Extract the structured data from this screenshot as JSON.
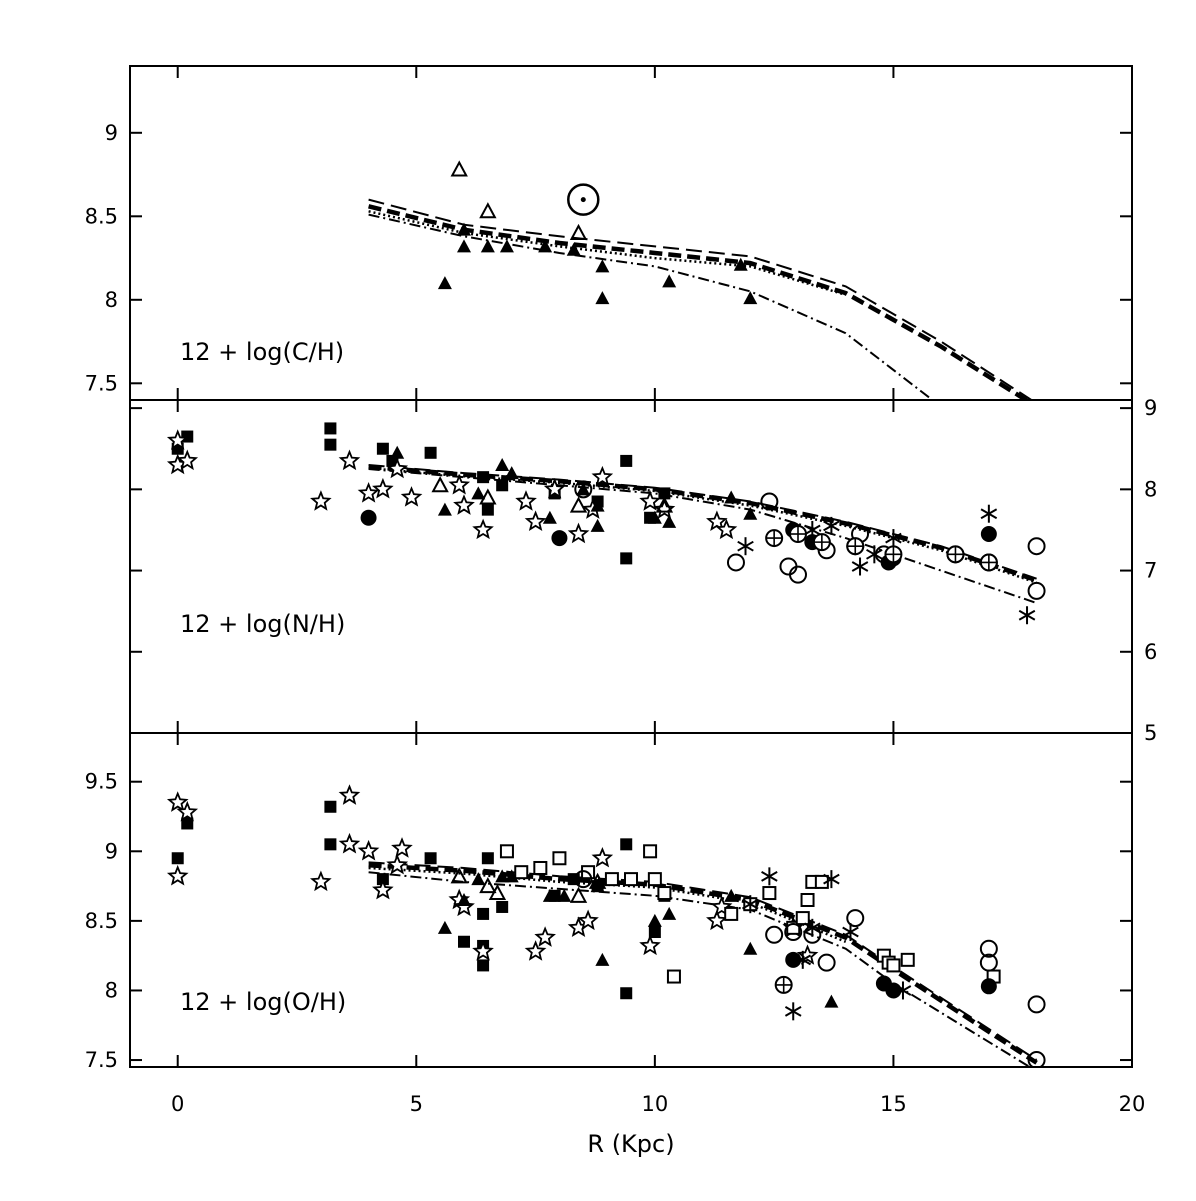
{
  "chart_data": {
    "type": "scatter",
    "x_axis": {
      "label": "R (Kpc)",
      "range": [
        -1,
        20
      ],
      "ticks": [
        0,
        5,
        10,
        15,
        20
      ],
      "tick_labels": [
        "0",
        "5",
        "10",
        "15",
        "20"
      ]
    },
    "panels": [
      {
        "label": "12 + log(C/H)",
        "y_range": [
          7.4,
          9.4
        ],
        "y_ticks": [
          7.5,
          8,
          8.5,
          9
        ],
        "y_tick_labels": [
          "7.5",
          "8",
          "8.5",
          "9"
        ],
        "y_axis_side": "left",
        "models": [
          {
            "style": "long-dash",
            "x": [
              4,
              6,
              8,
              10,
              12,
              14,
              16,
              18
            ],
            "y": [
              8.6,
              8.45,
              8.38,
              8.32,
              8.26,
              8.08,
              7.75,
              7.38
            ]
          },
          {
            "style": "bold-dash",
            "x": [
              4,
              6,
              8,
              10,
              12,
              14,
              16,
              18
            ],
            "y": [
              8.56,
              8.42,
              8.34,
              8.28,
              8.22,
              8.04,
              7.72,
              7.36
            ]
          },
          {
            "style": "dotted",
            "x": [
              4,
              6,
              8,
              10,
              12,
              14
            ],
            "y": [
              8.53,
              8.4,
              8.32,
              8.25,
              8.2,
              8.03
            ]
          },
          {
            "style": "dash-dot",
            "x": [
              4,
              6,
              8,
              10,
              12,
              14,
              16
            ],
            "y": [
              8.51,
              8.38,
              8.28,
              8.2,
              8.05,
              7.8,
              7.36
            ]
          }
        ],
        "points": [
          {
            "marker": "filled-triangle",
            "x": [
              5.6,
              6.0,
              6.0,
              6.5,
              6.9,
              7.7,
              8.3,
              8.9,
              8.9,
              10.3,
              11.8,
              12.0
            ],
            "y": [
              8.1,
              8.42,
              8.32,
              8.32,
              8.32,
              8.32,
              8.3,
              8.2,
              8.01,
              8.11,
              8.21,
              8.01
            ]
          },
          {
            "marker": "open-triangle",
            "x": [
              5.9,
              6.5,
              8.4
            ],
            "y": [
              8.78,
              8.53,
              8.4
            ]
          },
          {
            "marker": "sun",
            "x": [
              8.5
            ],
            "y": [
              8.6
            ]
          }
        ]
      },
      {
        "label": "12 + log(N/H)",
        "y_range": [
          5.0,
          9.1
        ],
        "y_ticks": [
          5,
          6,
          7,
          8,
          9
        ],
        "y_tick_labels": [
          "5",
          "6",
          "7",
          "8",
          "9"
        ],
        "y_axis_side": "right",
        "models": [
          {
            "style": "long-dash",
            "x": [
              4,
              6,
              8,
              10,
              12,
              14,
              16,
              18
            ],
            "y": [
              8.3,
              8.2,
              8.12,
              8.02,
              7.85,
              7.6,
              7.3,
              6.9
            ]
          },
          {
            "style": "bold-dash",
            "x": [
              4,
              6,
              8,
              10,
              12,
              14,
              16,
              18
            ],
            "y": [
              8.28,
              8.18,
              8.1,
              8.0,
              7.83,
              7.58,
              7.28,
              6.88
            ]
          },
          {
            "style": "dotted",
            "x": [
              4,
              6,
              8,
              10,
              12,
              14,
              16,
              18
            ],
            "y": [
              8.26,
              8.16,
              8.08,
              7.98,
              7.8,
              7.55,
              7.25,
              6.85
            ]
          },
          {
            "style": "dash-dot",
            "x": [
              4,
              6,
              8,
              10,
              12,
              14,
              16,
              18
            ],
            "y": [
              8.25,
              8.15,
              8.05,
              7.95,
              7.75,
              7.4,
              7.0,
              6.6
            ]
          }
        ],
        "points": [
          {
            "marker": "filled-square",
            "x": [
              0.0,
              0.2,
              3.2,
              3.2,
              4.3,
              4.5,
              5.3,
              6.4,
              6.5,
              6.8,
              7.9,
              8.8,
              9.4,
              9.4,
              9.9,
              10.2
            ],
            "y": [
              8.5,
              8.65,
              8.75,
              8.55,
              8.5,
              8.35,
              8.45,
              8.15,
              7.75,
              8.05,
              7.95,
              7.85,
              8.35,
              7.15,
              7.65,
              7.95
            ]
          },
          {
            "marker": "open-star",
            "x": [
              0.0,
              0.0,
              0.2,
              3.0,
              3.6,
              4.0,
              4.3,
              4.6,
              4.9,
              5.9,
              6.0,
              6.4,
              7.3,
              7.5,
              7.9,
              8.4,
              8.7,
              8.9,
              9.9,
              10.2,
              11.3,
              11.5
            ],
            "y": [
              8.6,
              8.3,
              8.35,
              7.85,
              8.35,
              7.95,
              8.0,
              8.25,
              7.9,
              8.05,
              7.8,
              7.5,
              7.85,
              7.6,
              8.0,
              7.45,
              7.75,
              8.15,
              7.85,
              7.75,
              7.6,
              7.5
            ]
          },
          {
            "marker": "filled-triangle",
            "x": [
              4.6,
              5.6,
              6.3,
              6.8,
              7.0,
              7.8,
              8.5,
              8.8,
              8.8,
              10.0,
              10.3,
              11.6,
              12.0
            ],
            "y": [
              8.45,
              7.75,
              7.95,
              8.3,
              8.2,
              7.65,
              8.0,
              7.8,
              7.55,
              7.65,
              7.6,
              7.9,
              7.7
            ]
          },
          {
            "marker": "open-triangle",
            "x": [
              5.5,
              6.5,
              8.4,
              10.2
            ],
            "y": [
              8.05,
              7.9,
              7.8,
              7.8
            ]
          },
          {
            "marker": "filled-circle",
            "x": [
              4.0,
              8.0,
              12.9,
              13.3,
              14.9,
              15.0,
              17.0
            ],
            "y": [
              7.65,
              7.4,
              7.5,
              7.35,
              7.1,
              7.15,
              7.45
            ]
          },
          {
            "marker": "open-circle",
            "x": [
              8.5,
              11.7,
              12.4,
              12.8,
              13.0,
              13.6,
              14.2,
              14.3,
              14.8,
              16.3,
              17.0,
              18.0,
              18.0
            ],
            "y": [
              8.0,
              7.1,
              7.85,
              7.05,
              6.95,
              7.25,
              7.3,
              7.45,
              7.2,
              7.2,
              7.1,
              7.3,
              6.75
            ]
          },
          {
            "marker": "asterisk",
            "x": [
              11.9,
              13.3,
              13.7,
              14.3,
              14.6,
              15.0,
              17.0,
              17.8
            ],
            "y": [
              7.3,
              7.5,
              7.55,
              7.05,
              7.2,
              7.4,
              7.7,
              6.45
            ]
          },
          {
            "marker": "circled-cross",
            "x": [
              12.5,
              13.0,
              13.5,
              14.2,
              15.0,
              16.3,
              17.0
            ],
            "y": [
              7.4,
              7.45,
              7.35,
              7.3,
              7.2,
              7.2,
              7.1
            ]
          }
        ]
      },
      {
        "label": "12 + log(O/H)",
        "y_range": [
          7.45,
          9.85
        ],
        "y_ticks": [
          7.5,
          8,
          8.5,
          9,
          9.5
        ],
        "y_tick_labels": [
          "7.5",
          "8",
          "8.5",
          "9",
          "9.5"
        ],
        "y_axis_side": "left",
        "models": [
          {
            "style": "long-dash",
            "x": [
              4,
              6,
              8,
              10,
              12,
              14,
              15,
              18
            ],
            "y": [
              8.92,
              8.88,
              8.82,
              8.78,
              8.67,
              8.4,
              8.17,
              7.5
            ]
          },
          {
            "style": "bold-dash",
            "x": [
              4,
              6,
              8,
              10,
              12,
              14,
              15,
              18
            ],
            "y": [
              8.9,
              8.86,
              8.8,
              8.76,
              8.65,
              8.38,
              8.15,
              7.48
            ]
          },
          {
            "style": "dotted",
            "x": [
              4,
              6,
              8,
              10,
              12,
              14
            ],
            "y": [
              8.88,
              8.84,
              8.78,
              8.74,
              8.63,
              8.35
            ]
          },
          {
            "style": "dash-dot",
            "x": [
              4,
              6,
              8,
              10,
              12,
              14,
              15,
              18
            ],
            "y": [
              8.85,
              8.78,
              8.73,
              8.68,
              8.58,
              8.3,
              8.05,
              7.42
            ]
          }
        ],
        "points": [
          {
            "marker": "filled-square",
            "x": [
              0.0,
              0.2,
              3.2,
              3.2,
              4.3,
              5.3,
              6.0,
              6.4,
              6.4,
              6.4,
              6.5,
              6.8,
              7.9,
              8.3,
              8.8,
              9.4,
              9.4,
              10.0,
              10.2
            ],
            "y": [
              8.95,
              9.2,
              9.32,
              9.05,
              8.8,
              8.95,
              8.35,
              8.32,
              8.18,
              8.55,
              8.95,
              8.6,
              8.68,
              8.8,
              8.75,
              9.05,
              7.98,
              8.42,
              8.68
            ]
          },
          {
            "marker": "open-star",
            "x": [
              0.0,
              0.0,
              0.2,
              3.0,
              3.6,
              3.6,
              4.0,
              4.3,
              4.6,
              4.7,
              5.9,
              6.0,
              6.4,
              7.5,
              7.7,
              8.4,
              8.6,
              8.9,
              9.9,
              11.3,
              11.4,
              12.9,
              13.2
            ],
            "y": [
              9.35,
              8.82,
              9.28,
              8.78,
              9.4,
              9.05,
              9.0,
              8.72,
              8.9,
              9.02,
              8.65,
              8.6,
              8.28,
              8.28,
              8.38,
              8.45,
              8.5,
              8.95,
              8.32,
              8.5,
              8.6,
              8.45,
              8.25
            ]
          },
          {
            "marker": "filled-triangle",
            "x": [
              5.6,
              6.0,
              6.3,
              6.8,
              7.0,
              7.8,
              8.1,
              8.8,
              8.9,
              10.0,
              10.3,
              11.6,
              12.0,
              13.7
            ],
            "y": [
              8.45,
              8.65,
              8.8,
              8.82,
              8.82,
              8.68,
              8.68,
              8.75,
              8.22,
              8.5,
              8.55,
              8.68,
              8.3,
              7.92
            ]
          },
          {
            "marker": "open-triangle",
            "x": [
              5.9,
              6.5,
              6.7,
              8.4,
              8.8
            ],
            "y": [
              8.82,
              8.75,
              8.7,
              8.68,
              8.78
            ]
          },
          {
            "marker": "open-square",
            "x": [
              6.9,
              7.2,
              7.6,
              8.0,
              8.6,
              9.1,
              9.5,
              9.9,
              10.0,
              10.2,
              10.4,
              11.6,
              12.0,
              12.4,
              12.9,
              13.1,
              13.2,
              13.3,
              13.5,
              14.8,
              14.9,
              15.0,
              15.3,
              17.1
            ],
            "y": [
              9.0,
              8.85,
              8.88,
              8.95,
              8.85,
              8.8,
              8.8,
              9.0,
              8.8,
              8.7,
              8.1,
              8.55,
              8.62,
              8.7,
              8.45,
              8.52,
              8.65,
              8.78,
              8.78,
              8.25,
              8.2,
              8.18,
              8.22,
              8.1
            ]
          },
          {
            "marker": "filled-circle",
            "x": [
              12.9,
              14.8,
              15.0,
              17.0
            ],
            "y": [
              8.22,
              8.05,
              8.0,
              8.03
            ]
          },
          {
            "marker": "open-circle",
            "x": [
              8.5,
              12.5,
              12.9,
              13.3,
              13.6,
              14.2,
              17.0,
              17.0,
              18.0,
              18.0
            ],
            "y": [
              8.8,
              8.4,
              8.42,
              8.4,
              8.2,
              8.52,
              8.3,
              8.2,
              7.9,
              7.5
            ]
          },
          {
            "marker": "asterisk",
            "x": [
              12.0,
              12.4,
              12.9,
              13.1,
              13.3,
              13.7,
              14.1,
              15.2
            ],
            "y": [
              8.62,
              8.82,
              7.85,
              8.22,
              8.45,
              8.8,
              8.42,
              8.0
            ]
          },
          {
            "marker": "circled-cross",
            "x": [
              12.7
            ],
            "y": [
              8.04
            ]
          }
        ]
      }
    ]
  }
}
